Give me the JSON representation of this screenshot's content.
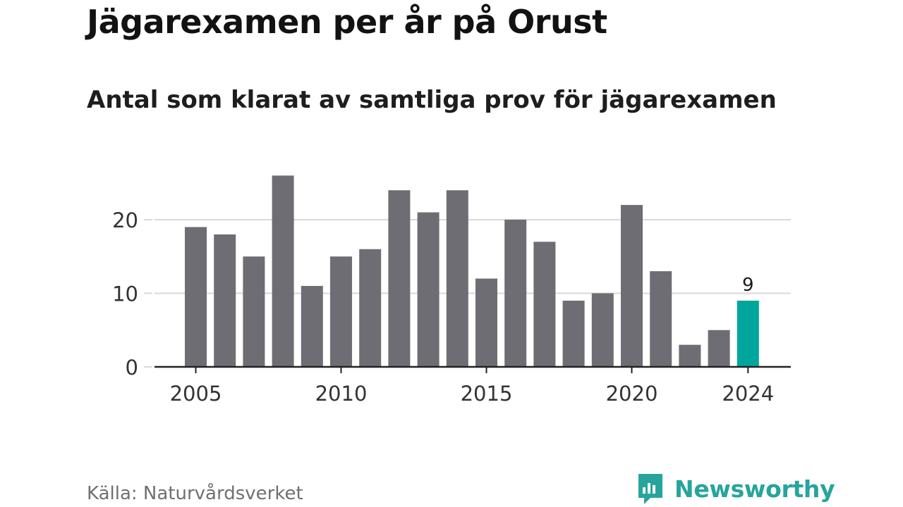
{
  "title": "Jägarexamen per år på Orust",
  "subtitle": "Antal som klarat av samtliga prov för jägarexamen",
  "source": "Källa: Naturvårdsverket",
  "brand": {
    "name": "Newsworthy",
    "icon": "newsworthy-logo-icon",
    "color": "#27a59c"
  },
  "colors": {
    "bar": "#6e6d73",
    "highlight": "#00a69c",
    "grid": "#d9d9d9",
    "axis": "#222222",
    "tick_text": "#333333"
  },
  "chart_data": {
    "type": "bar",
    "categories": [
      2005,
      2006,
      2007,
      2008,
      2009,
      2010,
      2011,
      2012,
      2013,
      2014,
      2015,
      2016,
      2017,
      2018,
      2019,
      2020,
      2021,
      2022,
      2023,
      2024
    ],
    "values": [
      19,
      18,
      15,
      26,
      11,
      15,
      16,
      24,
      21,
      24,
      12,
      20,
      17,
      9,
      10,
      22,
      13,
      3,
      5,
      9
    ],
    "highlight_category": 2024,
    "annotation": {
      "category": 2024,
      "label": "9"
    },
    "x_ticks": [
      2005,
      2010,
      2015,
      2020,
      2024
    ],
    "y_ticks": [
      0,
      10,
      20
    ],
    "ylim": [
      0,
      26
    ],
    "grid": true,
    "xlabel": "",
    "ylabel": ""
  }
}
